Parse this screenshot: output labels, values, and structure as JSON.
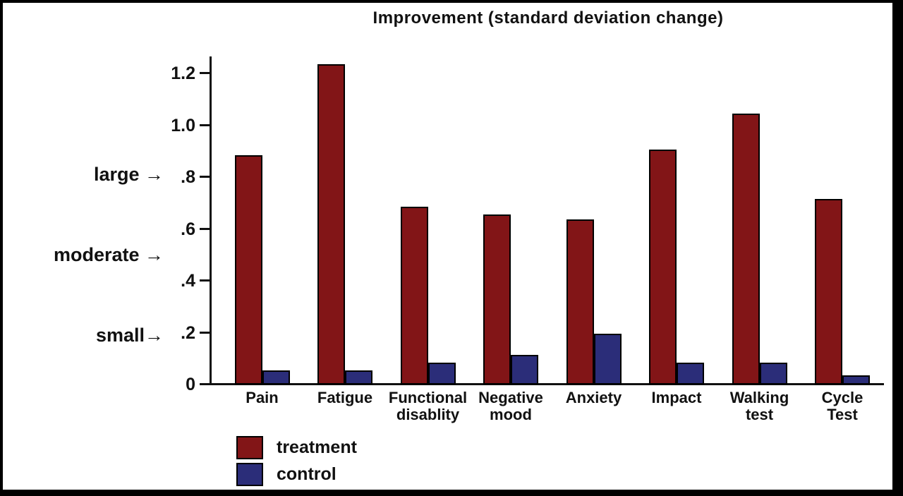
{
  "window": {
    "title": "Improvement (standard deviation change)"
  },
  "colors": {
    "background": "#ffffff",
    "frame_border": "#000000",
    "axis": "#111111",
    "text": "#111111",
    "treatment": "#821517",
    "control": "#2B2D79"
  },
  "chart_data": {
    "type": "bar",
    "title": "Improvement (standard deviation change)",
    "xlabel": "",
    "ylabel": "",
    "ylim": [
      0,
      1.26
    ],
    "grid": false,
    "legend_position": "bottom-left",
    "categories": [
      [
        "Pain"
      ],
      [
        "Fatigue"
      ],
      [
        "Functional",
        "disablity"
      ],
      [
        "Negative",
        "mood"
      ],
      [
        "Anxiety"
      ],
      [
        "Impact"
      ],
      [
        "Walking",
        "test"
      ],
      [
        "Cycle",
        "Test"
      ]
    ],
    "series": [
      {
        "name": "treatment",
        "color": "#821517",
        "values": [
          0.88,
          1.23,
          0.68,
          0.65,
          0.63,
          0.9,
          1.04,
          0.71
        ]
      },
      {
        "name": "control",
        "color": "#2B2D79",
        "values": [
          0.05,
          0.05,
          0.08,
          0.11,
          0.19,
          0.08,
          0.08,
          0.03
        ]
      }
    ],
    "y_ticks": [
      {
        "label": "0",
        "value": 0.0
      },
      {
        "label": ".2",
        "value": 0.2
      },
      {
        "label": ".4",
        "value": 0.4
      },
      {
        "label": ".6",
        "value": 0.6
      },
      {
        "label": ".8",
        "value": 0.8
      },
      {
        "label": "1.0",
        "value": 1.0
      },
      {
        "label": "1.2",
        "value": 1.2
      }
    ],
    "annotations": [
      {
        "label": "large →",
        "value": 0.8
      },
      {
        "label": "moderate →",
        "value": 0.49
      },
      {
        "label": "small→",
        "value": 0.18
      }
    ]
  }
}
